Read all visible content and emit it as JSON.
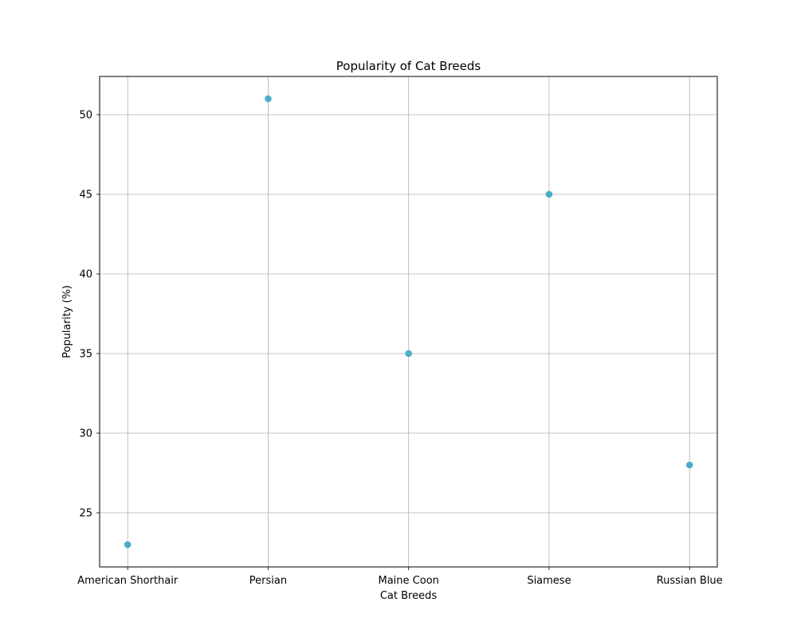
{
  "chart_data": {
    "type": "scatter",
    "title": "Popularity of Cat Breeds",
    "xlabel": "Cat Breeds",
    "ylabel": "Popularity (%)",
    "categories": [
      "American Shorthair",
      "Persian",
      "Maine Coon",
      "Siamese",
      "Russian Blue"
    ],
    "values": [
      23,
      51,
      35,
      45,
      28
    ],
    "ylim": [
      21.6,
      52.4
    ],
    "yticks": [
      25,
      30,
      35,
      40,
      45,
      50
    ],
    "grid": true,
    "marker_color": "#4badc6"
  }
}
